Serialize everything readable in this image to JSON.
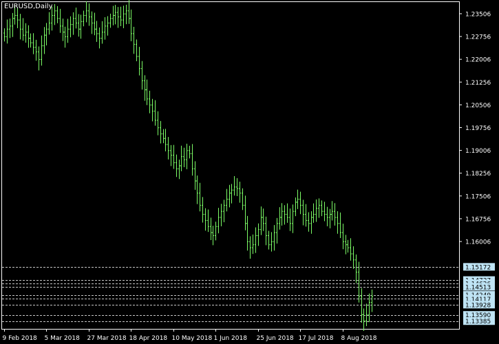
{
  "window": {
    "symbol_title": "EURUSD,Daily"
  },
  "colors": {
    "background": "#000000",
    "foreground": "#ffffff",
    "candle": "#7CFC66",
    "level_line": "#c8c8c8",
    "level_label_bg": "#bfe4f5"
  },
  "chart_data": {
    "type": "candlestick",
    "title": "EURUSD,Daily",
    "xlabel": "",
    "ylabel": "",
    "grid": false,
    "ylim": [
      1.1313,
      1.2389
    ],
    "y_ticks": [
      "1.23506",
      "1.22756",
      "1.22006",
      "1.21256",
      "1.20506",
      "1.19756",
      "1.19006",
      "1.18256",
      "1.17506",
      "1.16756",
      "1.16006"
    ],
    "x_ticks": [
      "9 Feb 2018",
      "5 Mar 2018",
      "27 Mar 2018",
      "18 Apr 2018",
      "10 May 2018",
      "1 Jun 2018",
      "25 Jun 2018",
      "17 Jul 2018",
      "8 Aug 2018"
    ],
    "x_tick_index": [
      0,
      16,
      32,
      48,
      64,
      80,
      96,
      112,
      128
    ],
    "levels": [
      {
        "value": 1.15172,
        "label": "1.15172"
      },
      {
        "value": 1.14737,
        "label": "1.14737"
      },
      {
        "value": 1.14626,
        "label": "1.14626"
      },
      {
        "value": 1.14513,
        "label": "1.14513"
      },
      {
        "value": 1.14249,
        "label": "1.14249"
      },
      {
        "value": 1.14117,
        "label": "1.14117"
      },
      {
        "value": 1.13928,
        "label": "1.13928"
      },
      {
        "value": 1.13385,
        "label": "1.13385"
      },
      {
        "value": 1.1359,
        "label": "1.13590"
      }
    ],
    "closes": [
      1.2275,
      1.23,
      1.231,
      1.2335,
      1.2345,
      1.233,
      1.23,
      1.228,
      1.229,
      1.227,
      1.2255,
      1.224,
      1.2225,
      1.22,
      1.2245,
      1.228,
      1.23,
      1.232,
      1.2345,
      1.236,
      1.2335,
      1.231,
      1.229,
      1.2275,
      1.23,
      1.2315,
      1.2335,
      1.232,
      1.23,
      1.2325,
      1.2345,
      1.236,
      1.234,
      1.232,
      1.23,
      1.2285,
      1.227,
      1.229,
      1.231,
      1.232,
      1.2335,
      1.2345,
      1.2355,
      1.234,
      1.233,
      1.235,
      1.236,
      1.2335,
      1.2285,
      1.225,
      1.221,
      1.217,
      1.213,
      1.21,
      1.207,
      1.205,
      1.203,
      1.2,
      1.1975,
      1.1955,
      1.194,
      1.192,
      1.19,
      1.1885,
      1.186,
      1.184,
      1.185,
      1.188,
      1.187,
      1.19,
      1.189,
      1.184,
      1.18,
      1.176,
      1.172,
      1.169,
      1.167,
      1.165,
      1.163,
      1.162,
      1.165,
      1.168,
      1.17,
      1.172,
      1.174,
      1.176,
      1.177,
      1.178,
      1.1775,
      1.176,
      1.172,
      1.166,
      1.16,
      1.158,
      1.159,
      1.162,
      1.164,
      1.168,
      1.166,
      1.162,
      1.159,
      1.16,
      1.163,
      1.166,
      1.168,
      1.17,
      1.169,
      1.168,
      1.166,
      1.17,
      1.173,
      1.174,
      1.172,
      1.169,
      1.167,
      1.166,
      1.168,
      1.169,
      1.171,
      1.172,
      1.17,
      1.169,
      1.168,
      1.169,
      1.17,
      1.168,
      1.166,
      1.163,
      1.16,
      1.159,
      1.158,
      1.156,
      1.154,
      1.15,
      1.142,
      1.136,
      1.134,
      1.136,
      1.14,
      1.142
    ],
    "spread": 0.0045
  },
  "price_axis": {
    "top_marker": "1.23506"
  }
}
